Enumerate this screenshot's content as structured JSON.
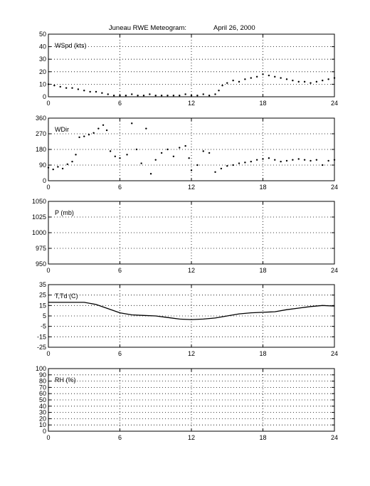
{
  "figure": {
    "title": "Juneau RWE Meteogram:",
    "date": "April 26, 2000"
  },
  "chart_data": [
    {
      "type": "scatter",
      "id": "wspd",
      "label": "WSpd (kts)",
      "xlim": [
        0,
        24
      ],
      "ylim": [
        0,
        50
      ],
      "xticks": [
        0,
        6,
        12,
        18,
        24
      ],
      "yticks": [
        0,
        10,
        20,
        30,
        40,
        50
      ],
      "grid": true,
      "series": [
        {
          "x": [
            0,
            0.5,
            1,
            1.5,
            2,
            2.5,
            3,
            3.5,
            4,
            4.5,
            5,
            5.5,
            6,
            6.5,
            7,
            7.5,
            8,
            8.5,
            9,
            9.5,
            10,
            10.5,
            11,
            11.5,
            12,
            12.5,
            13,
            13.5,
            14,
            14.3,
            14.6,
            15,
            15.5,
            16,
            16.5,
            17,
            17.5,
            18,
            18.5,
            19,
            19.5,
            20,
            20.5,
            21,
            21.5,
            22,
            22.5,
            23,
            23.5,
            24
          ],
          "y": [
            10,
            9,
            8,
            7,
            7,
            6,
            5,
            4,
            4,
            3,
            2,
            1,
            1,
            1,
            2,
            1,
            1,
            2,
            1,
            1,
            1,
            1,
            1,
            2,
            1,
            1,
            2,
            1,
            2,
            5,
            9,
            11,
            13,
            12,
            14,
            15,
            16,
            18,
            17,
            16,
            15,
            14,
            13,
            12,
            12,
            11,
            12,
            13,
            14,
            15
          ]
        }
      ]
    },
    {
      "type": "scatter",
      "id": "wdir",
      "label": "WDir",
      "xlim": [
        0,
        24
      ],
      "ylim": [
        0,
        360
      ],
      "xticks": [
        0,
        6,
        12,
        18,
        24
      ],
      "yticks": [
        0,
        90,
        180,
        270,
        360
      ],
      "grid": true,
      "series": [
        {
          "x": [
            0,
            0.4,
            0.8,
            1.2,
            1.6,
            2.0,
            2.3,
            2.6,
            3.0,
            3.4,
            3.8,
            4.2,
            4.6,
            4.9,
            5.2,
            5.6,
            6.0,
            6.6,
            7.0,
            7.4,
            7.8,
            8.2,
            8.6,
            9.0,
            9.5,
            10.0,
            10.5,
            11.0,
            11.5,
            11.8,
            12.0,
            12.5,
            13.0,
            13.5,
            14.0,
            14.5,
            15.0,
            15.5,
            16.0,
            16.5,
            17.0,
            17.5,
            18.0,
            18.5,
            19.0,
            19.5,
            20.0,
            20.5,
            21.0,
            21.5,
            22.0,
            22.5,
            23.0,
            23.5,
            24.0
          ],
          "y": [
            75,
            65,
            80,
            70,
            95,
            110,
            150,
            250,
            255,
            265,
            275,
            300,
            320,
            290,
            170,
            140,
            130,
            150,
            330,
            180,
            100,
            300,
            40,
            120,
            160,
            180,
            140,
            190,
            200,
            130,
            60,
            90,
            170,
            160,
            50,
            70,
            85,
            90,
            100,
            105,
            110,
            120,
            125,
            130,
            120,
            110,
            115,
            120,
            125,
            120,
            115,
            120,
            90,
            115,
            120
          ]
        }
      ]
    },
    {
      "type": "line",
      "id": "pressure",
      "label": "P (mb)",
      "xlim": [
        0,
        24
      ],
      "ylim": [
        950,
        1050
      ],
      "xticks": [
        0,
        6,
        12,
        18,
        24
      ],
      "yticks": [
        950,
        975,
        1000,
        1025,
        1050
      ],
      "grid": true,
      "series": []
    },
    {
      "type": "line",
      "id": "temp",
      "label": "T,Td (C)",
      "xlim": [
        0,
        24
      ],
      "ylim": [
        -25,
        35
      ],
      "xticks": [
        0,
        6,
        12,
        18,
        24
      ],
      "yticks": [
        -25,
        -15,
        -5,
        5,
        15,
        25,
        35
      ],
      "grid": true,
      "series": [
        {
          "x": [
            0,
            1,
            2,
            3,
            4,
            5,
            6,
            7,
            8,
            9,
            10,
            11,
            12,
            13,
            14,
            15,
            16,
            17,
            18,
            19,
            20,
            21,
            22,
            23,
            24
          ],
          "y": [
            18,
            18,
            18,
            18,
            16,
            12,
            8,
            6,
            5.5,
            5,
            3.5,
            2,
            1.5,
            2,
            3,
            5,
            7,
            8,
            8.5,
            9,
            11,
            12.5,
            14,
            15,
            14.5
          ]
        }
      ]
    },
    {
      "type": "line",
      "id": "rh",
      "label": "RH (%)",
      "xlim": [
        0,
        24
      ],
      "ylim": [
        0,
        100
      ],
      "xticks": [
        0,
        6,
        12,
        18,
        24
      ],
      "yticks": [
        0,
        10,
        20,
        30,
        40,
        50,
        60,
        70,
        80,
        90,
        100
      ],
      "grid": true,
      "series": []
    }
  ]
}
